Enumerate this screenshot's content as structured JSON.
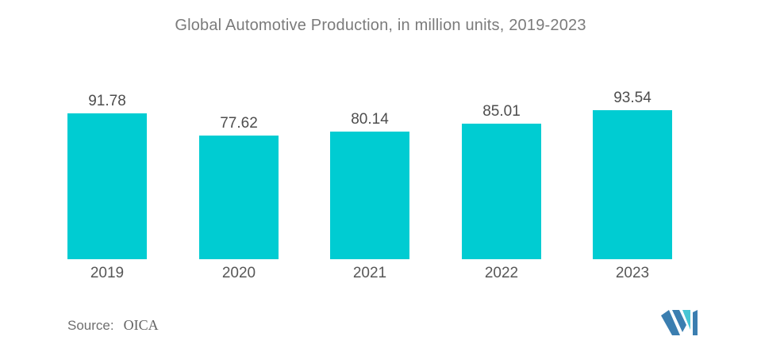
{
  "title": "Global Automotive Production, in million units, 2019-2023",
  "source": {
    "label": "Source:",
    "value": "OICA"
  },
  "logo": {
    "name": "mordor-intelligence-logo",
    "blue": "#3b7eb0",
    "teal": "#47c5d4"
  },
  "chart_data": {
    "type": "bar",
    "categories": [
      "2019",
      "2020",
      "2021",
      "2022",
      "2023"
    ],
    "values": [
      91.78,
      77.62,
      80.14,
      85.01,
      93.54
    ],
    "title": "Global Automotive Production, in million units, 2019-2023",
    "xlabel": "",
    "ylabel": "",
    "ylim": [
      0,
      100
    ],
    "grid": false,
    "legend": false,
    "bar_color": "#00CCD2",
    "value_label_color": "#4d4d4d",
    "category_label_color": "#575757",
    "title_color": "#7b7b7b"
  }
}
